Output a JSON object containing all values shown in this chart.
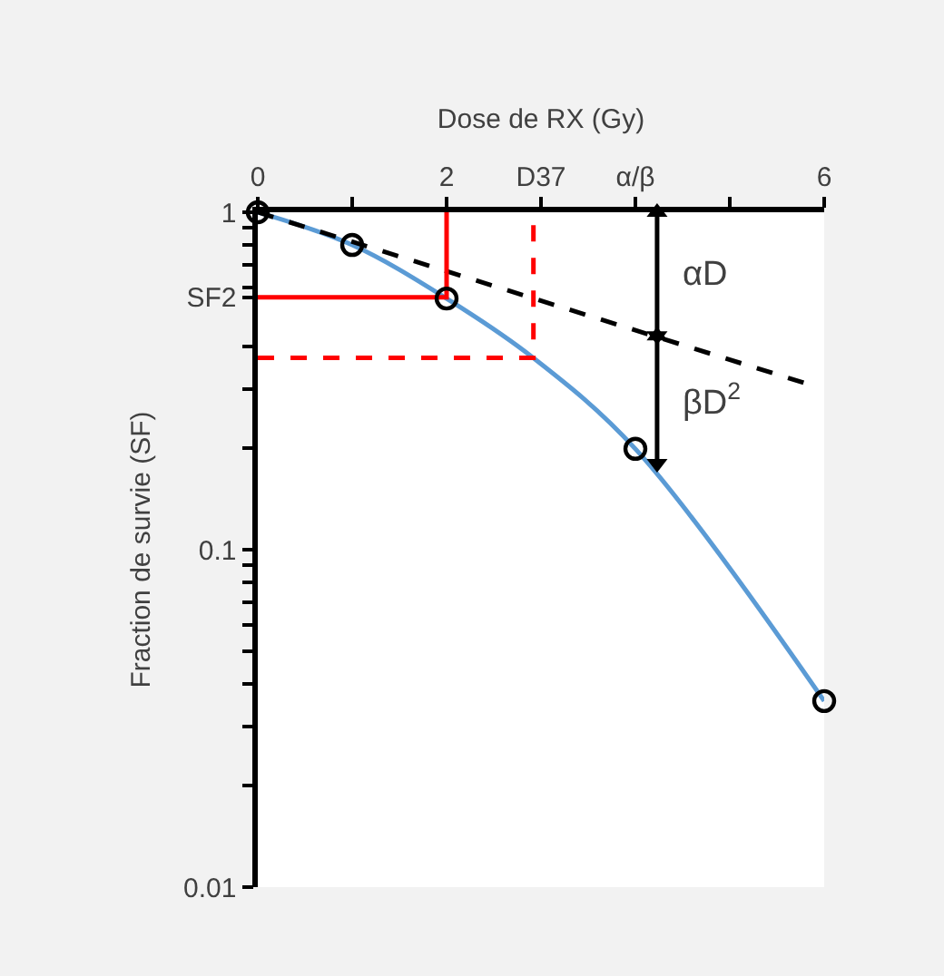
{
  "chart_data": {
    "type": "line",
    "xlabel": "Dose de RX (Gy)",
    "ylabel": "Fraction de survie (SF)",
    "xlim": [
      0,
      6
    ],
    "xticks": [
      0,
      {
        "value": 1,
        "label": null
      },
      2,
      {
        "value": 3,
        "label": "D37"
      },
      {
        "value": 4,
        "label": "α/β"
      },
      {
        "value": 5,
        "label": null
      },
      6
    ],
    "log": "y",
    "ylim": [
      0.01,
      1
    ],
    "yticks": [
      0.01,
      {
        "value": 0.02,
        "label": null
      },
      {
        "value": 0.03,
        "label": null
      },
      {
        "value": 0.04,
        "label": null
      },
      {
        "value": 0.05,
        "label": null
      },
      {
        "value": 0.06,
        "label": null
      },
      {
        "value": 0.07,
        "label": null
      },
      {
        "value": 0.08,
        "label": null
      },
      {
        "value": 0.09,
        "label": null
      },
      0.1,
      {
        "value": 0.2,
        "label": null
      },
      {
        "value": 0.3,
        "label": null
      },
      {
        "value": 0.4,
        "label": null
      },
      {
        "value": 0.56,
        "label": "SF2"
      },
      {
        "value": 0.6,
        "label": null
      },
      {
        "value": 0.7,
        "label": null
      },
      {
        "value": 0.8,
        "label": null
      },
      {
        "value": 0.9,
        "label": null
      },
      1
    ],
    "series": [
      {
        "color": "#5b9bd5",
        "line_style": "solid",
        "x": [
          0,
          1,
          2,
          2.92,
          4,
          6
        ],
        "values": [
          1,
          0.8,
          0.555,
          0.37,
          0.199,
          0.0356
        ]
      },
      {
        "color": "#000000",
        "line_style": "dashed",
        "x": [
          0,
          5.82
        ],
        "values": [
          1,
          0.31
        ]
      },
      {
        "color": "#ff0000",
        "line_style": "solid",
        "x": [
          0,
          2,
          2
        ],
        "values": [
          0.56,
          0.56,
          1
        ]
      },
      {
        "color": "#ff0000",
        "line_style": "dashed",
        "x": [
          0,
          2.92,
          2.92
        ],
        "values": [
          0.37,
          0.37,
          1
        ]
      },
      {
        "color": "#000000",
        "line_style": "solid",
        "marker": "triangle",
        "x": [
          4.23,
          4.23
        ],
        "values": [
          1,
          0.43
        ]
      },
      {
        "color": "#000000",
        "line_style": "solid",
        "marker": "triangle",
        "x": [
          4.23,
          4.23
        ],
        "values": [
          0.43,
          0.18
        ]
      },
      {
        "type": "scatter",
        "color": "#000000",
        "marker": "circle",
        "x": [
          0,
          1,
          2,
          4,
          6
        ],
        "values": [
          1,
          0.8,
          0.555,
          0.199,
          0.0356
        ]
      }
    ],
    "annotations": [
      "αD",
      "βD$^{2}$"
    ]
  }
}
